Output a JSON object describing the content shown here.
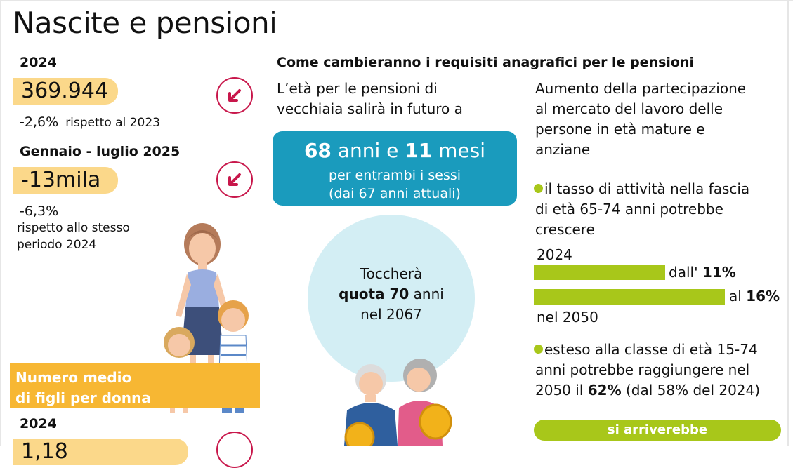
{
  "title": "Nascite e pensioni",
  "left": {
    "block1": {
      "year": "2024",
      "value": "369.944",
      "change_pct": "-2,6%",
      "change_note": "rispetto al 2023"
    },
    "block2": {
      "period": "Gennaio - luglio 2025",
      "value": "-13mila",
      "change_pct": "-6,3%",
      "change_note_1": "rispetto allo stesso",
      "change_note_2": "periodo 2024"
    },
    "orange_box": {
      "line1": "Numero medio",
      "line2": "di figli per donna"
    },
    "block3": {
      "year": "2024",
      "value": "1,18"
    },
    "arrow_icon": "arrow-down-left-icon",
    "colors": {
      "pill": "#fbd88a",
      "arrow": "#c8174b",
      "orange": "#f7b733"
    }
  },
  "middle": {
    "heading": "Come cambieranno i requisiti anagrafici per le pensioni",
    "intro_1": "L’età per le pensioni di",
    "intro_2": "vecchiaia salirà in futuro a",
    "blue_box": {
      "num1": "68",
      "word1": " anni e ",
      "num2": "11",
      "word2": " mesi",
      "sub1": "per entrambi i sessi",
      "sub2": "(dai 67 anni attuali)"
    },
    "circle": {
      "line1": "Toccherà",
      "line2_bold": "quota 70",
      "line2_rest": " anni",
      "line3": "nel 2067"
    },
    "colors": {
      "blue": "#1a9bbd",
      "light_circle": "#d3eef4"
    }
  },
  "right": {
    "intro_1": "Aumento della partecipazione",
    "intro_2": "al mercato del lavoro delle",
    "intro_3": "persone in età mature e",
    "intro_4": "anziane",
    "bullet1_1": "il tasso di attività nella fascia",
    "bullet1_2": "di età 65-74 anni potrebbe",
    "bullet1_3": "crescere",
    "bar_year_1": "2024",
    "bar1_prefix": "dall' ",
    "bar1_value": "11%",
    "bar1_pct": 11,
    "bar2_prefix": "al ",
    "bar2_value": "16%",
    "bar2_pct": 16,
    "bar_year_2": "nel 2050",
    "bullet2_1": "esteso alla classe di età 15-74",
    "bullet2_2": "anni potrebbe raggiungere nel",
    "bullet2_3a": "2050 il ",
    "bullet2_3b": "62%",
    "bullet2_3c": " (dal 58% del 2024)",
    "pill": "si arriverebbe",
    "colors": {
      "green": "#a8c71a"
    }
  }
}
